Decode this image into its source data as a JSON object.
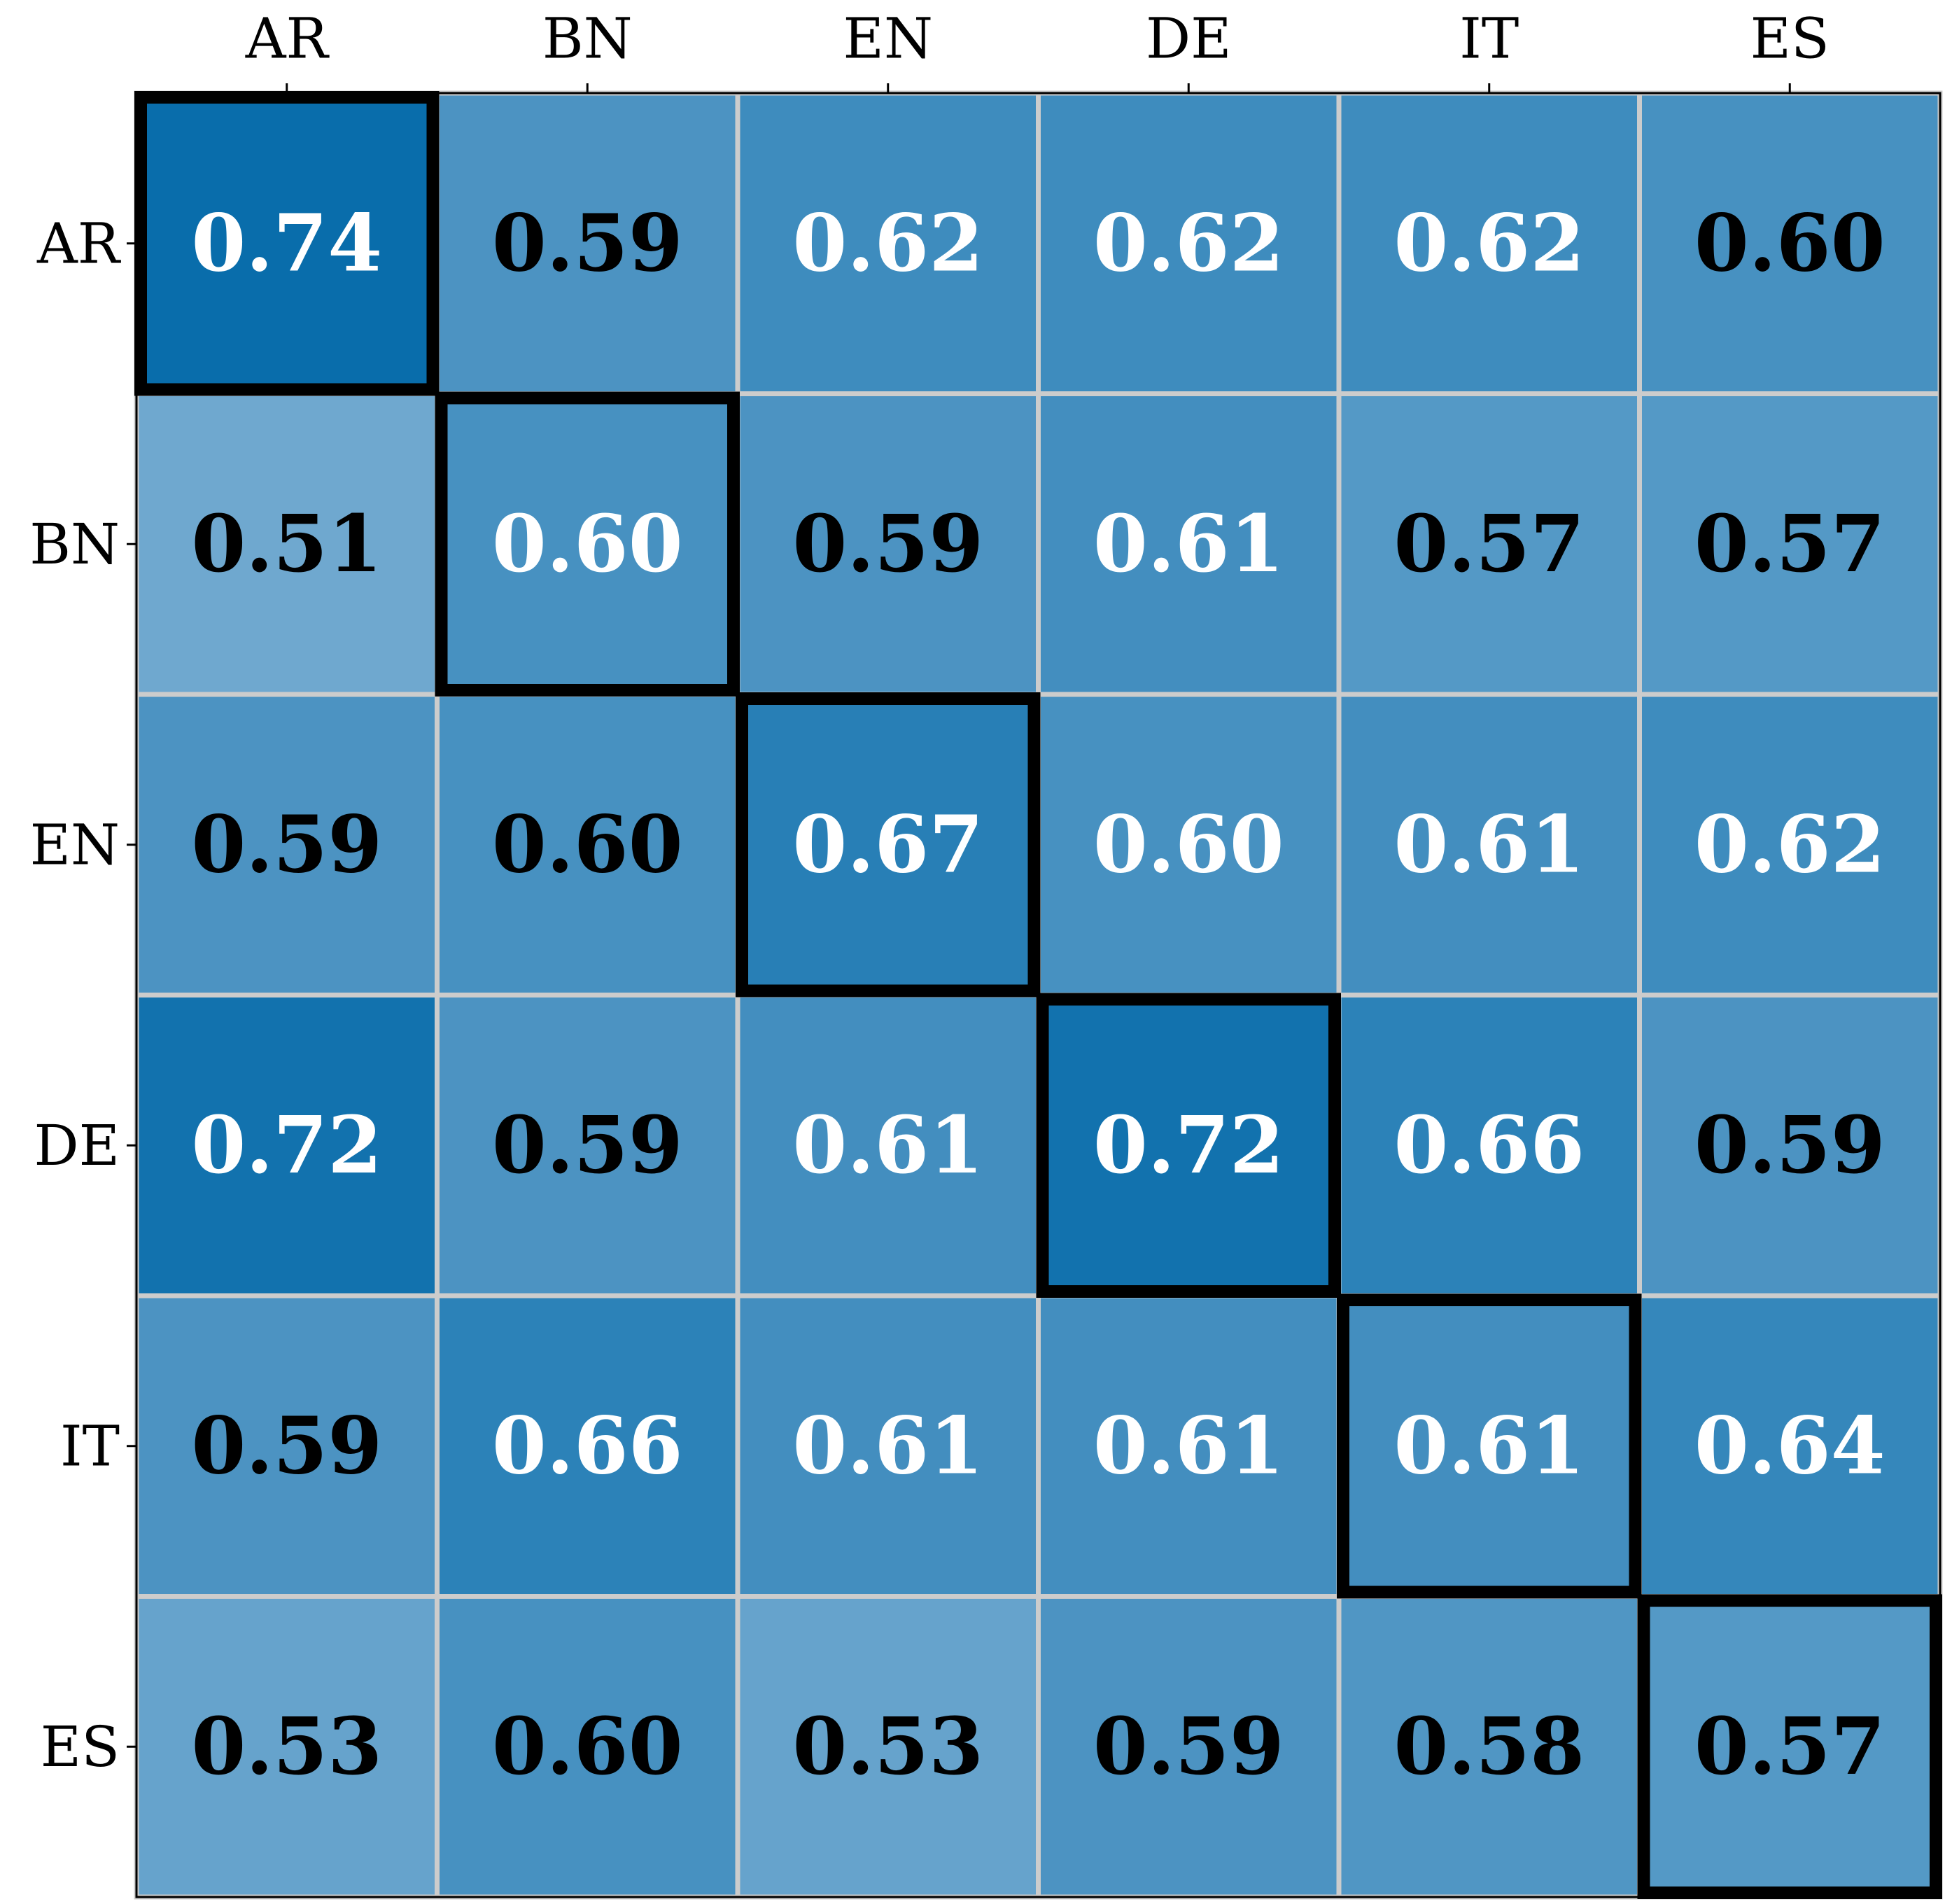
{
  "chart_data": {
    "type": "heatmap",
    "x_categories": [
      "AR",
      "BN",
      "EN",
      "DE",
      "IT",
      "ES"
    ],
    "y_categories": [
      "AR",
      "BN",
      "EN",
      "DE",
      "IT",
      "ES"
    ],
    "values": [
      [
        0.74,
        0.59,
        0.62,
        0.62,
        0.62,
        0.6
      ],
      [
        0.51,
        0.6,
        0.59,
        0.61,
        0.57,
        0.57
      ],
      [
        0.59,
        0.6,
        0.67,
        0.6,
        0.61,
        0.62
      ],
      [
        0.72,
        0.59,
        0.61,
        0.72,
        0.66,
        0.59
      ],
      [
        0.59,
        0.66,
        0.61,
        0.61,
        0.61,
        0.64
      ],
      [
        0.53,
        0.6,
        0.53,
        0.59,
        0.58,
        0.57
      ]
    ],
    "value_labels": [
      [
        "0.74",
        "0.59",
        "0.62",
        "0.62",
        "0.62",
        "0.60"
      ],
      [
        "0.51",
        "0.60",
        "0.59",
        "0.61",
        "0.57",
        "0.57"
      ],
      [
        "0.59",
        "0.60",
        "0.67",
        "0.60",
        "0.61",
        "0.62"
      ],
      [
        "0.72",
        "0.59",
        "0.61",
        "0.72",
        "0.66",
        "0.59"
      ],
      [
        "0.59",
        "0.66",
        "0.61",
        "0.61",
        "0.61",
        "0.64"
      ],
      [
        "0.53",
        "0.60",
        "0.53",
        "0.59",
        "0.58",
        "0.57"
      ]
    ],
    "text_colors": [
      [
        "#ffffff",
        "#000000",
        "#ffffff",
        "#ffffff",
        "#ffffff",
        "#000000"
      ],
      [
        "#000000",
        "#ffffff",
        "#000000",
        "#ffffff",
        "#000000",
        "#000000"
      ],
      [
        "#000000",
        "#000000",
        "#ffffff",
        "#ffffff",
        "#ffffff",
        "#ffffff"
      ],
      [
        "#ffffff",
        "#000000",
        "#ffffff",
        "#ffffff",
        "#ffffff",
        "#000000"
      ],
      [
        "#000000",
        "#ffffff",
        "#ffffff",
        "#ffffff",
        "#ffffff",
        "#ffffff"
      ],
      [
        "#000000",
        "#000000",
        "#000000",
        "#000000",
        "#000000",
        "#000000"
      ]
    ],
    "colors": [
      "#6fa8cf",
      "#096dab"
    ],
    "grid_color": "#cccccc",
    "highlight": "diagonal"
  }
}
